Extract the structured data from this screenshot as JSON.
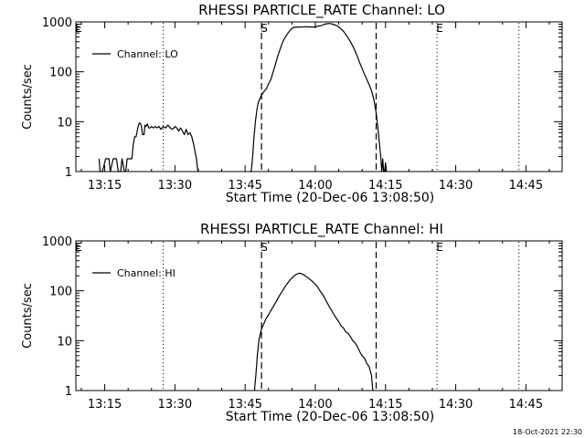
{
  "chart_data": [
    {
      "type": "line",
      "title": "RHESSI PARTICLE_RATE Channel: LO",
      "xlabel": "Start Time (20-Dec-06 13:08:50)",
      "ylabel": "Counts/sec",
      "yscale": "log",
      "ylim": [
        1,
        1000
      ],
      "xlim_minutes_after_13_00": [
        8.83,
        55
      ],
      "xticks": [
        {
          "t": 15,
          "label": "13:15"
        },
        {
          "t": 30,
          "label": "13:30"
        },
        {
          "t": 45,
          "label": "13:45"
        },
        {
          "t": 60,
          "label": "14:00"
        },
        {
          "t": 75,
          "label": "14:15"
        },
        {
          "t": 90,
          "label": "14:30"
        },
        {
          "t": 105,
          "label": "14:45"
        }
      ],
      "yticks": [
        {
          "v": 1,
          "label": "1"
        },
        {
          "v": 10,
          "label": "10"
        },
        {
          "v": 100,
          "label": "100"
        },
        {
          "v": 1000,
          "label": "1000"
        }
      ],
      "legend": "Channel: LO",
      "legend_position": "top-left",
      "markers": [
        {
          "t": 8.83,
          "style": "dotted",
          "label": "E"
        },
        {
          "t": 27.5,
          "style": "dotted",
          "label": ""
        },
        {
          "t": 48.5,
          "style": "dashed",
          "label": "S"
        },
        {
          "t": 73.0,
          "style": "dashed",
          "label": ""
        },
        {
          "t": 86.0,
          "style": "dotted",
          "label": "E"
        },
        {
          "t": 103.5,
          "style": "dotted",
          "label": ""
        }
      ],
      "series": [
        {
          "name": "Channel: LO",
          "segments": [
            [
              [
                13.8,
                1.8
              ],
              [
                14.0,
                1.0
              ],
              [
                14.2,
                1.0
              ],
              [
                14.5,
                1.0
              ],
              [
                15.2,
                1.8
              ],
              [
                15.9,
                1.8
              ],
              [
                16.2,
                1.0
              ],
              [
                16.8,
                1.8
              ],
              [
                17.5,
                1.8
              ],
              [
                17.9,
                1.0
              ],
              [
                18.4,
                1.0
              ],
              [
                18.7,
                1.8
              ],
              [
                19.2,
                1.0
              ],
              [
                19.5,
                1.0
              ],
              [
                19.8,
                1.8
              ],
              [
                20.3,
                1.8
              ],
              [
                20.8,
                1.8
              ],
              [
                21.1,
                3.5
              ],
              [
                21.4,
                5.0
              ],
              [
                21.7,
                5.0
              ],
              [
                22.0,
                7.0
              ],
              [
                22.3,
                9.0
              ],
              [
                22.5,
                9.5
              ],
              [
                22.8,
                8.5
              ],
              [
                23.1,
                5.5
              ],
              [
                23.4,
                5.5
              ],
              [
                23.6,
                8.5
              ],
              [
                23.8,
                8.0
              ],
              [
                24.1,
                9.0
              ],
              [
                24.4,
                7.5
              ],
              [
                24.7,
                7.5
              ],
              [
                25.0,
                8.0
              ],
              [
                25.4,
                7.5
              ],
              [
                25.8,
                8.0
              ],
              [
                26.2,
                7.5
              ],
              [
                26.6,
                8.0
              ],
              [
                27.0,
                7.0
              ],
              [
                27.5,
                8.0
              ],
              [
                28.0,
                7.5
              ],
              [
                28.5,
                8.5
              ],
              [
                29.0,
                7.5
              ],
              [
                29.5,
                7.0
              ],
              [
                30.0,
                8.0
              ],
              [
                30.4,
                7.5
              ],
              [
                30.8,
                6.5
              ],
              [
                31.2,
                7.5
              ],
              [
                31.6,
                6.5
              ],
              [
                32.0,
                5.5
              ],
              [
                32.4,
                7.0
              ],
              [
                32.8,
                5.5
              ],
              [
                33.2,
                6.0
              ],
              [
                33.6,
                5.0
              ],
              [
                34.0,
                3.5
              ],
              [
                34.3,
                2.5
              ],
              [
                34.6,
                1.8
              ],
              [
                34.9,
                1.0
              ],
              [
                35.1,
                1.0
              ]
            ],
            [
              [
                46.0,
                1.0
              ],
              [
                46.3,
                1.0
              ],
              [
                46.6,
                2.0
              ],
              [
                46.9,
                5.0
              ],
              [
                47.2,
                10.0
              ],
              [
                47.5,
                17.0
              ],
              [
                47.8,
                24.0
              ],
              [
                48.2,
                30.0
              ],
              [
                48.6,
                35.0
              ],
              [
                49.0,
                40.0
              ],
              [
                49.5,
                45.0
              ],
              [
                50.0,
                57.0
              ],
              [
                50.5,
                70.0
              ],
              [
                51.0,
                100.0
              ],
              [
                51.5,
                145.0
              ],
              [
                52.0,
                210.0
              ],
              [
                52.5,
                290.0
              ],
              [
                53.0,
                390.0
              ],
              [
                53.5,
                480.0
              ],
              [
                54.0,
                570.0
              ],
              [
                54.5,
                660.0
              ],
              [
                55.0,
                740.0
              ],
              [
                55.5,
                780.0
              ],
              [
                56.0,
                790.0
              ],
              [
                57.0,
                785.0
              ],
              [
                58.0,
                800.0
              ],
              [
                59.0,
                790.0
              ],
              [
                60.0,
                790.0
              ],
              [
                60.5,
                820.0
              ],
              [
                61.0,
                830.0
              ],
              [
                61.5,
                860.0
              ],
              [
                62.0,
                900.0
              ],
              [
                62.5,
                920.0
              ],
              [
                63.0,
                930.0
              ],
              [
                63.5,
                910.0
              ],
              [
                64.0,
                880.0
              ],
              [
                64.5,
                850.0
              ],
              [
                65.0,
                790.0
              ],
              [
                65.5,
                720.0
              ],
              [
                66.0,
                650.0
              ],
              [
                66.5,
                560.0
              ],
              [
                67.0,
                480.0
              ],
              [
                67.5,
                400.0
              ],
              [
                68.0,
                330.0
              ],
              [
                68.5,
                260.0
              ],
              [
                69.0,
                200.0
              ],
              [
                69.5,
                150.0
              ],
              [
                70.0,
                115.0
              ],
              [
                70.5,
                90.0
              ],
              [
                71.0,
                70.0
              ],
              [
                71.5,
                55.0
              ],
              [
                72.0,
                42.0
              ],
              [
                72.5,
                28.0
              ],
              [
                73.0,
                15.0
              ],
              [
                73.4,
                7.0
              ],
              [
                73.8,
                3.0
              ],
              [
                74.0,
                1.8
              ],
              [
                74.2,
                1.0
              ],
              [
                74.4,
                1.8
              ],
              [
                74.6,
                1.0
              ],
              [
                74.8,
                1.0
              ],
              [
                75.0,
                1.5
              ],
              [
                75.2,
                1.0
              ]
            ]
          ]
        }
      ]
    },
    {
      "type": "line",
      "title": "RHESSI PARTICLE_RATE Channel: HI",
      "xlabel": "Start Time (20-Dec-06 13:08:50)",
      "ylabel": "Counts/sec",
      "yscale": "log",
      "ylim": [
        1,
        1000
      ],
      "xticks": [
        {
          "t": 15,
          "label": "13:15"
        },
        {
          "t": 30,
          "label": "13:30"
        },
        {
          "t": 45,
          "label": "13:45"
        },
        {
          "t": 60,
          "label": "14:00"
        },
        {
          "t": 75,
          "label": "14:15"
        },
        {
          "t": 90,
          "label": "14:30"
        },
        {
          "t": 105,
          "label": "14:45"
        }
      ],
      "yticks": [
        {
          "v": 1,
          "label": "1"
        },
        {
          "v": 10,
          "label": "10"
        },
        {
          "v": 100,
          "label": "100"
        },
        {
          "v": 1000,
          "label": "1000"
        }
      ],
      "legend": "Channel: HI",
      "legend_position": "top-left",
      "markers": [
        {
          "t": 8.83,
          "style": "dotted",
          "label": "E"
        },
        {
          "t": 27.5,
          "style": "dotted",
          "label": ""
        },
        {
          "t": 48.5,
          "style": "dashed",
          "label": "S"
        },
        {
          "t": 73.0,
          "style": "dashed",
          "label": ""
        },
        {
          "t": 86.0,
          "style": "dotted",
          "label": "E"
        },
        {
          "t": 103.5,
          "style": "dotted",
          "label": ""
        }
      ],
      "series": [
        {
          "name": "Channel: HI",
          "segments": [
            [
              [
                47.0,
                1.0
              ],
              [
                47.3,
                2.0
              ],
              [
                47.6,
                5.0
              ],
              [
                48.0,
                11.0
              ],
              [
                48.5,
                17.0
              ],
              [
                49.0,
                22.0
              ],
              [
                49.5,
                28.0
              ],
              [
                50.0,
                33.0
              ],
              [
                50.5,
                40.0
              ],
              [
                51.0,
                48.0
              ],
              [
                51.5,
                58.0
              ],
              [
                52.0,
                70.0
              ],
              [
                52.5,
                85.0
              ],
              [
                53.0,
                100.0
              ],
              [
                53.5,
                120.0
              ],
              [
                54.0,
                140.0
              ],
              [
                54.5,
                160.0
              ],
              [
                55.0,
                180.0
              ],
              [
                55.5,
                200.0
              ],
              [
                56.0,
                215.0
              ],
              [
                56.5,
                225.0
              ],
              [
                57.0,
                220.0
              ],
              [
                57.5,
                210.0
              ],
              [
                58.0,
                195.0
              ],
              [
                58.5,
                180.0
              ],
              [
                59.0,
                165.0
              ],
              [
                59.5,
                150.0
              ],
              [
                60.0,
                135.0
              ],
              [
                60.5,
                118.0
              ],
              [
                61.0,
                100.0
              ],
              [
                61.5,
                85.0
              ],
              [
                62.0,
                72.0
              ],
              [
                62.5,
                58.0
              ],
              [
                63.0,
                48.0
              ],
              [
                63.5,
                40.0
              ],
              [
                64.0,
                33.0
              ],
              [
                64.5,
                28.0
              ],
              [
                65.0,
                24.0
              ],
              [
                65.5,
                20.0
              ],
              [
                66.0,
                18.0
              ],
              [
                66.5,
                15.0
              ],
              [
                67.0,
                14.0
              ],
              [
                67.5,
                12.0
              ],
              [
                68.0,
                10.0
              ],
              [
                68.5,
                9.0
              ],
              [
                69.0,
                7.5
              ],
              [
                69.5,
                6.0
              ],
              [
                70.0,
                5.0
              ],
              [
                70.5,
                4.5
              ],
              [
                71.0,
                3.5
              ],
              [
                71.5,
                3.0
              ],
              [
                72.0,
                2.0
              ],
              [
                72.3,
                1.0
              ]
            ]
          ]
        }
      ]
    }
  ],
  "footer": {
    "timestamp": "18-Oct-2021 22:30"
  }
}
